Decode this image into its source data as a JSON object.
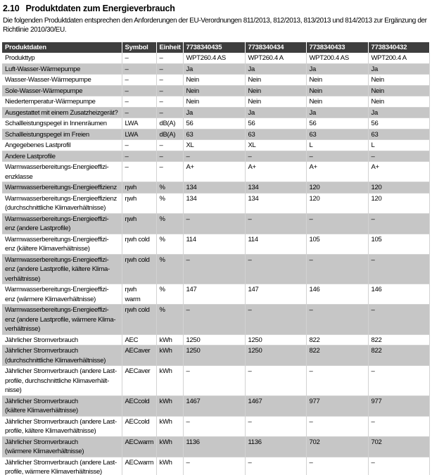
{
  "section": {
    "number": "2.10",
    "title": "Produktdaten zum Energieverbrauch"
  },
  "intro": "Die folgenden Produktdaten entsprechen den Anforderungen der EU-Verordnungen 811/2013, 812/2013, 813/2013 und 814/2013 zur Ergänzung der Richtlinie 2010/30/EU.",
  "colors": {
    "table_header_bg": "#3e3e3e",
    "row_alt_bg": "#c6c6c6",
    "grid_line": "#d2d2d2"
  },
  "table": {
    "columns": [
      "Produktdaten",
      "Symbol",
      "Einheit",
      "7738340435",
      "7738340434",
      "7738340433",
      "7738340432"
    ],
    "rows": [
      {
        "label": "Produkttyp",
        "symbol": "–",
        "unit": "–",
        "values": [
          "WPT260.4 AS",
          "WPT260.4 A",
          "WPT200.4 AS",
          "WPT200.4 A"
        ]
      },
      {
        "label": "Luft-Wasser-Wärmepumpe",
        "symbol": "–",
        "unit": "–",
        "values": [
          "Ja",
          "Ja",
          "Ja",
          "Ja"
        ]
      },
      {
        "label": "Wasser-Wasser-Wärmepumpe",
        "symbol": "–",
        "unit": "–",
        "values": [
          "Nein",
          "Nein",
          "Nein",
          "Nein"
        ]
      },
      {
        "label": "Sole-Wasser-Wärmepumpe",
        "symbol": "–",
        "unit": "–",
        "values": [
          "Nein",
          "Nein",
          "Nein",
          "Nein"
        ]
      },
      {
        "label": "Niedertemperatur-Wärmepumpe",
        "symbol": "–",
        "unit": "–",
        "values": [
          "Nein",
          "Nein",
          "Nein",
          "Nein"
        ]
      },
      {
        "label": "Ausgestattet mit einem Zusatzheizgerät?",
        "symbol": "–",
        "unit": "–",
        "values": [
          "Ja",
          "Ja",
          "Ja",
          "Ja"
        ]
      },
      {
        "label": "Schallleistungspegel in Innenräumen",
        "symbol": "LWA",
        "unit": "dB(A)",
        "values": [
          "56",
          "56",
          "56",
          "56"
        ]
      },
      {
        "label": "Schallleistungspegel im Freien",
        "symbol": "LWA",
        "unit": "dB(A)",
        "values": [
          "63",
          "63",
          "63",
          "63"
        ]
      },
      {
        "label": "Angegebenes Lastprofil",
        "symbol": "–",
        "unit": "–",
        "values": [
          "XL",
          "XL",
          "L",
          "L"
        ]
      },
      {
        "label": "Andere Lastprofile",
        "symbol": "–",
        "unit": "–",
        "values": [
          "–",
          "–",
          "–",
          "–"
        ]
      },
      {
        "label": "Warmwasserbereitungs-Energieeffizi-\nenzklasse",
        "symbol": "–",
        "unit": "–",
        "values": [
          "A+",
          "A+",
          "A+",
          "A+"
        ]
      },
      {
        "label": "Warmwasserbereitungs-Energieeffizienz",
        "symbol": "ηwh",
        "unit": "%",
        "values": [
          "134",
          "134",
          "120",
          "120"
        ]
      },
      {
        "label": "Warmwasserbereitungs-Energieeffizienz\n(durchschnittliche Klimaverhältnisse)",
        "symbol": "ηwh",
        "unit": "%",
        "values": [
          "134",
          "134",
          "120",
          "120"
        ]
      },
      {
        "label": "Warmwasserbereitungs-Energieeffizi-\nenz (andere Lastprofile)",
        "symbol": "ηwh",
        "unit": "%",
        "values": [
          "–",
          "–",
          "–",
          "–"
        ]
      },
      {
        "label": "Warmwasserbereitungs-Energieeffizi-\nenz (kältere Klimaverhältnisse)",
        "symbol": "ηwh cold",
        "unit": "%",
        "values": [
          "114",
          "114",
          "105",
          "105"
        ]
      },
      {
        "label": "Warmwasserbereitungs-Energieeffizi-\nenz (andere Lastprofile, kältere Klima-\nverhältnisse)",
        "symbol": "ηwh cold",
        "unit": "%",
        "values": [
          "–",
          "–",
          "–",
          "–"
        ]
      },
      {
        "label": "Warmwasserbereitungs-Energieeffizi-\nenz (wärmere Klimaverhältnisse)",
        "symbol": "ηwh warm",
        "unit": "%",
        "values": [
          "147",
          "147",
          "146",
          "146"
        ]
      },
      {
        "label": "Warmwasserbereitungs-Energieeffizi-\nenz (andere Lastprofile, wärmere Klima-\nverhältnisse)",
        "symbol": "ηwh cold",
        "unit": "%",
        "values": [
          "–",
          "–",
          "–",
          "–"
        ]
      },
      {
        "label": "Jährlicher Stromverbrauch",
        "symbol": "AEC",
        "unit": "kWh",
        "values": [
          "1250",
          "1250",
          "822",
          "822"
        ]
      },
      {
        "label": "Jährlicher Stromverbrauch\n(durchschnittliche Klimaverhältnisse)",
        "symbol": "AECaver",
        "unit": "kWh",
        "values": [
          "1250",
          "1250",
          "822",
          "822"
        ]
      },
      {
        "label": "Jährlicher Stromverbrauch (andere Last-\nprofile, durchschnittliche Klimaverhält-\nnisse)",
        "symbol": "AECaver",
        "unit": "kWh",
        "values": [
          "–",
          "–",
          "–",
          "–"
        ]
      },
      {
        "label": "Jährlicher Stromverbrauch\n(kältere Klimaverhältnisse)",
        "symbol": "AECcold",
        "unit": "kWh",
        "values": [
          "1467",
          "1467",
          "977",
          "977"
        ]
      },
      {
        "label": "Jährlicher Stromverbrauch (andere Last-\nprofile, kältere Klimaverhältnisse)",
        "symbol": "AECcold",
        "unit": "kWh",
        "values": [
          "–",
          "–",
          "–",
          "–"
        ]
      },
      {
        "label": "Jährlicher Stromverbrauch\n(wärmere Klimaverhältnisse)",
        "symbol": "AECwarm",
        "unit": "kWh",
        "values": [
          "1136",
          "1136",
          "702",
          "702"
        ]
      },
      {
        "label": "Jährlicher Stromverbrauch (andere Last-\nprofile, wärmere Klimaverhältnisse)",
        "symbol": "AECwarm",
        "unit": "kWh",
        "values": [
          "–",
          "–",
          "–",
          "–"
        ]
      }
    ]
  }
}
